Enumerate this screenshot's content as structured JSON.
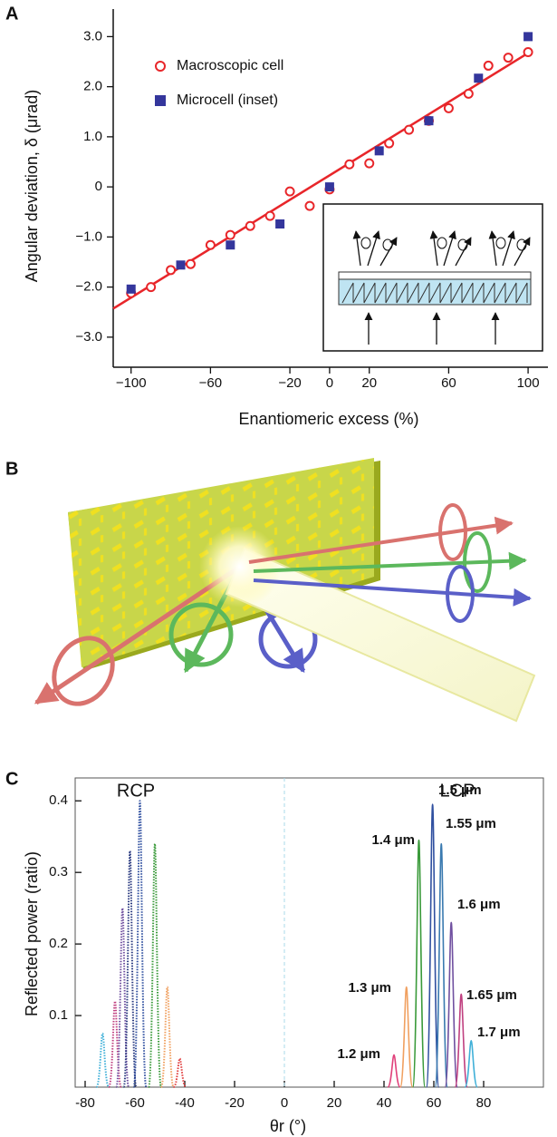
{
  "chart_data": [
    {
      "type": "scatter",
      "panel_label": "A",
      "x_label": "Enantiomeric excess (%)",
      "y_label": "Angular deviation, δ (μrad)",
      "xlim": [
        -109,
        110
      ],
      "ylim": [
        -3.6,
        3.55
      ],
      "xticks": [
        {
          "value": -100,
          "label": "−100"
        },
        {
          "value": -60,
          "label": "−60"
        },
        {
          "value": -20,
          "label": "−20"
        },
        0,
        20,
        60,
        100
      ],
      "yticks": [
        {
          "value": -3,
          "label": "−3.0"
        },
        {
          "value": -2,
          "label": "−2.0"
        },
        {
          "value": -1,
          "label": "−1.0"
        },
        0,
        {
          "value": 1,
          "label": "1.0"
        },
        {
          "value": 2,
          "label": "2.0"
        },
        {
          "value": 3,
          "label": "3.0"
        }
      ],
      "series": [
        {
          "name": "Macroscopic cell",
          "color": "#e8262a",
          "marker": "open-circle",
          "x": [
            -100,
            -90,
            -80,
            -70,
            -60,
            -50,
            -40,
            -30,
            -20,
            -10,
            0,
            10,
            20,
            30,
            40,
            50,
            60,
            70,
            80,
            90,
            100
          ],
          "values": [
            -2.12,
            -2.0,
            -1.66,
            -1.54,
            -1.16,
            -0.96,
            -0.78,
            -0.58,
            -0.09,
            -0.38,
            -0.05,
            0.45,
            0.47,
            0.87,
            1.14,
            1.32,
            1.57,
            1.86,
            2.42,
            2.58,
            2.69
          ]
        },
        {
          "name": "Microcell (inset)",
          "color": "#34369c",
          "marker": "square",
          "x": [
            -100,
            -75,
            -50,
            -25,
            0,
            25,
            50,
            75,
            100
          ],
          "values": [
            -2.04,
            -1.56,
            -1.16,
            -0.74,
            0.0,
            0.72,
            1.32,
            2.17,
            3.0
          ]
        }
      ],
      "fit": {
        "color": "#e8262a",
        "x": [
          -109,
          102
        ],
        "values": [
          -2.43,
          2.72
        ]
      }
    },
    {
      "type": "line",
      "panel_label": "C",
      "x_label": "θr (°)",
      "y_label": "Reflected power (ratio)",
      "xlim": [
        -84,
        104
      ],
      "ylim": [
        0,
        0.432
      ],
      "xticks": [
        -80,
        -60,
        -40,
        -20,
        0,
        20,
        40,
        60,
        80
      ],
      "yticks": [
        0.1,
        0.2,
        0.3,
        0.4
      ],
      "annotations": [
        "RCP",
        "LCP"
      ],
      "annotation_color": "#e07a3a",
      "series": [
        {
          "color": "#40b0d8",
          "style": "dotted",
          "x": [
            -75.5,
            -73,
            -70.5
          ],
          "values": [
            0,
            0.075,
            0
          ]
        },
        {
          "color": "#c04080",
          "style": "dotted",
          "x": [
            -70.5,
            -68,
            -65.5
          ],
          "values": [
            0,
            0.12,
            0
          ]
        },
        {
          "color": "#7050a0",
          "style": "dotted",
          "x": [
            -67.5,
            -65,
            -62.5
          ],
          "values": [
            0,
            0.25,
            0
          ]
        },
        {
          "color": "#2a3a80",
          "style": "dotted",
          "x": [
            -64.5,
            -62,
            -59.5
          ],
          "values": [
            0,
            0.33,
            0
          ]
        },
        {
          "color": "#3050a0",
          "style": "dotted",
          "x": [
            -60.5,
            -58,
            -55.5
          ],
          "values": [
            0,
            0.4,
            0
          ]
        },
        {
          "color": "#3a9a3a",
          "style": "dotted",
          "x": [
            -54.5,
            -52,
            -49.5
          ],
          "values": [
            0,
            0.34,
            0
          ]
        },
        {
          "color": "#f0a060",
          "style": "dotted",
          "x": [
            -49.5,
            -47,
            -44.5
          ],
          "values": [
            0,
            0.14,
            0
          ]
        },
        {
          "color": "#e03a3a",
          "style": "dotted",
          "x": [
            -44.5,
            -42,
            -39.5
          ],
          "values": [
            0,
            0.04,
            0
          ]
        },
        {
          "name": "1.2 μm",
          "color": "#e0407a",
          "style": "solid",
          "x": [
            41.5,
            44,
            46.5
          ],
          "values": [
            0,
            0.045,
            0
          ]
        },
        {
          "name": "1.3 μm",
          "color": "#f0a060",
          "style": "solid",
          "x": [
            46.5,
            49,
            51.5
          ],
          "values": [
            0,
            0.14,
            0
          ]
        },
        {
          "name": "1.4 μm",
          "color": "#3a9a3a",
          "style": "solid",
          "x": [
            51.5,
            54,
            56.5
          ],
          "values": [
            0,
            0.345,
            0
          ]
        },
        {
          "name": "1.5 μm",
          "color": "#3050a0",
          "style": "solid",
          "x": [
            57,
            59.5,
            62
          ],
          "values": [
            0,
            0.395,
            0
          ]
        },
        {
          "name": "1.55 μm",
          "color": "#3a7ab0",
          "style": "solid",
          "x": [
            60.5,
            63,
            65.5
          ],
          "values": [
            0,
            0.34,
            0
          ]
        },
        {
          "name": "1.6 μm",
          "color": "#7050a0",
          "style": "solid",
          "x": [
            64.5,
            67,
            69.5
          ],
          "values": [
            0,
            0.23,
            0
          ]
        },
        {
          "name": "1.65 μm",
          "color": "#c04080",
          "style": "solid",
          "x": [
            68.5,
            71,
            73.5
          ],
          "values": [
            0,
            0.13,
            0
          ]
        },
        {
          "name": "1.7 μm",
          "color": "#40b0d8",
          "style": "solid",
          "x": [
            72.5,
            75,
            77.5
          ],
          "values": [
            0,
            0.065,
            0
          ]
        }
      ]
    }
  ],
  "panel_b": {
    "label": "B"
  }
}
